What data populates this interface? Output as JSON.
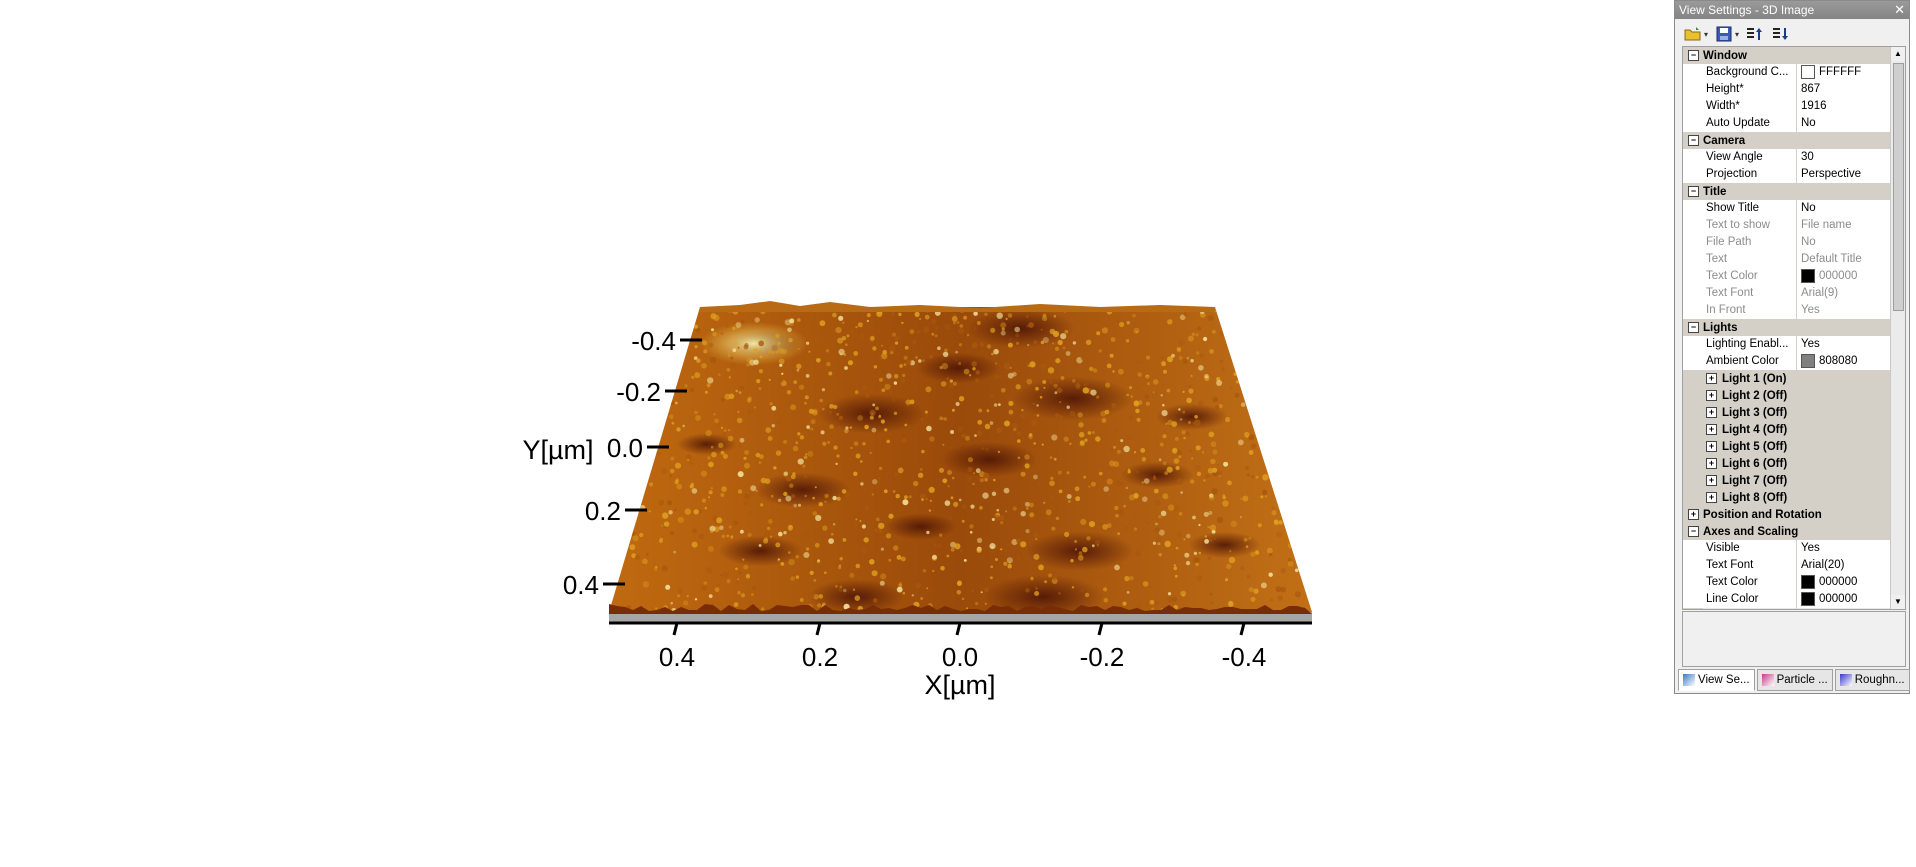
{
  "viewer": {
    "x_axis": {
      "title": "X[µm]",
      "tick_labels": [
        "0.4",
        "0.2",
        "0.0",
        "-0.2",
        "-0.4"
      ]
    },
    "y_axis": {
      "title": "Y[µm]",
      "tick_labels": [
        "-0.4",
        "-0.2",
        "0.0",
        "0.2",
        "0.4"
      ]
    },
    "surface_colors": {
      "dark": "#5a1c0a",
      "mid": "#a8580c",
      "light": "#e0a020",
      "highlight": "#f5e6a0",
      "base": "#a0a0a0"
    }
  },
  "panel": {
    "title": "View Settings - 3D Image",
    "toolbar": [
      "open-folder-icon",
      "save-icon",
      "sort-ascending-icon",
      "sort-categorized-icon"
    ],
    "categories": [
      {
        "name": "Window",
        "expanded": true,
        "props": [
          {
            "label": "Background C...",
            "value": "FFFFFF",
            "swatch": "#ffffff"
          },
          {
            "label": "Height*",
            "value": "867"
          },
          {
            "label": "Width*",
            "value": "1916"
          },
          {
            "label": "Auto Update",
            "value": "No"
          }
        ]
      },
      {
        "name": "Camera",
        "expanded": true,
        "props": [
          {
            "label": "View Angle",
            "value": "30"
          },
          {
            "label": "Projection",
            "value": "Perspective"
          }
        ]
      },
      {
        "name": "Title",
        "expanded": true,
        "props": [
          {
            "label": "Show Title",
            "value": "No"
          },
          {
            "label": "Text to show",
            "value": "File name",
            "disabled": true
          },
          {
            "label": "File Path",
            "value": "No",
            "disabled": true
          },
          {
            "label": "Text",
            "value": "Default Title",
            "disabled": true
          },
          {
            "label": "Text Color",
            "value": "000000",
            "swatch": "#000000",
            "disabled": true
          },
          {
            "label": "Text Font",
            "value": "Arial(9)",
            "disabled": true
          },
          {
            "label": "In Front",
            "value": "Yes",
            "disabled": true
          }
        ]
      },
      {
        "name": "Lights",
        "expanded": true,
        "props": [
          {
            "label": "Lighting Enabl...",
            "value": "Yes"
          },
          {
            "label": "Ambient Color",
            "value": "808080",
            "swatch": "#808080"
          }
        ],
        "subs": [
          "Light 1 (On)",
          "Light 2 (Off)",
          "Light 3 (Off)",
          "Light 4 (Off)",
          "Light 5 (Off)",
          "Light 6 (Off)",
          "Light 7 (Off)",
          "Light 8 (Off)"
        ]
      },
      {
        "name": "Position and Rotation",
        "expanded": false,
        "props": []
      },
      {
        "name": "Axes and Scaling",
        "expanded": true,
        "props": [
          {
            "label": "Visible",
            "value": "Yes"
          },
          {
            "label": "Text Font",
            "value": "Arial(20)"
          },
          {
            "label": "Text Color",
            "value": "000000",
            "swatch": "#000000"
          },
          {
            "label": "Line Color",
            "value": "000000",
            "swatch": "#000000"
          }
        ]
      }
    ],
    "tabs": [
      {
        "label": "View Se...",
        "active": true,
        "icon": "view-settings-icon"
      },
      {
        "label": "Particle ...",
        "active": false,
        "icon": "particle-icon"
      },
      {
        "label": "Roughn...",
        "active": false,
        "icon": "roughness-icon"
      }
    ]
  }
}
